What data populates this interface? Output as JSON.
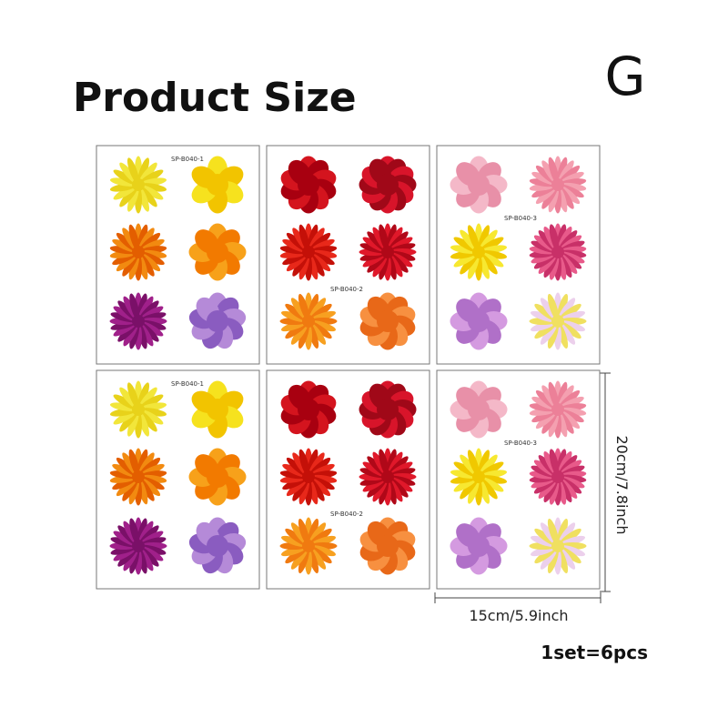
{
  "header": {
    "title": "Product Size",
    "badge": "G"
  },
  "sheets": [
    {
      "label": "SP-B040-1"
    },
    {
      "label": "SP-B040-2"
    },
    {
      "label": "SP-B040-3"
    },
    {
      "label": "SP-B040-1"
    },
    {
      "label": "SP-B040-2"
    },
    {
      "label": "SP-B040-3"
    }
  ],
  "dimensions": {
    "height": "20cm/7.8inch",
    "width": "15cm/5.9inch"
  },
  "footer": {
    "note": "1set=6pcs"
  }
}
